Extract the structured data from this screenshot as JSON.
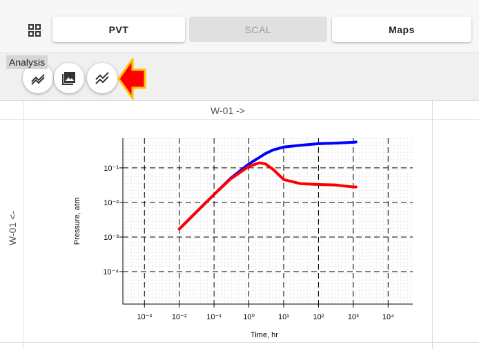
{
  "toolbar": {
    "tabs": [
      "PVT",
      "SCAL",
      "Maps"
    ]
  },
  "tooltip": "Analysis",
  "grid": {
    "column_header": "W-01 ->",
    "row_header": "W-01 <-"
  },
  "chart_data": {
    "type": "line",
    "x_label": "Time, hr",
    "y_label": "Pressure, atm",
    "xlog": true,
    "ylog": true,
    "grid": true,
    "xlim": [
      0.00024,
      51000
    ],
    "ylim": [
      1.15e-05,
      0.72
    ],
    "xticks": [
      {
        "value": 0.001,
        "label": "10⁻³"
      },
      {
        "value": 0.01,
        "label": "10⁻²"
      },
      {
        "value": 0.1,
        "label": "10⁻¹"
      },
      {
        "value": 1,
        "label": "10⁰"
      },
      {
        "value": 10,
        "label": "10¹"
      },
      {
        "value": 100,
        "label": "10²"
      },
      {
        "value": 1000,
        "label": "10³"
      },
      {
        "value": 10000,
        "label": "10⁴"
      }
    ],
    "yticks": [
      {
        "value": 0.0001,
        "label": "10⁻⁴"
      },
      {
        "value": 0.001,
        "label": "10⁻³"
      },
      {
        "value": 0.01,
        "label": "10⁻²"
      },
      {
        "value": 0.1,
        "label": "10⁻¹"
      }
    ],
    "x": [
      0.01,
      0.03,
      0.1,
      0.3,
      1,
      2,
      3,
      5,
      10,
      30,
      100,
      300,
      1000,
      1200
    ],
    "series": [
      {
        "color": "#0000ff",
        "values": [
          0.0017,
          0.0051,
          0.017,
          0.05,
          0.13,
          0.2,
          0.26,
          0.33,
          0.4,
          0.45,
          0.5,
          0.52,
          0.55,
          0.56
        ]
      },
      {
        "color": "#ff0000",
        "values": [
          0.0017,
          0.0051,
          0.017,
          0.048,
          0.11,
          0.14,
          0.13,
          0.09,
          0.046,
          0.035,
          0.033,
          0.032,
          0.028,
          0.028
        ]
      }
    ]
  }
}
